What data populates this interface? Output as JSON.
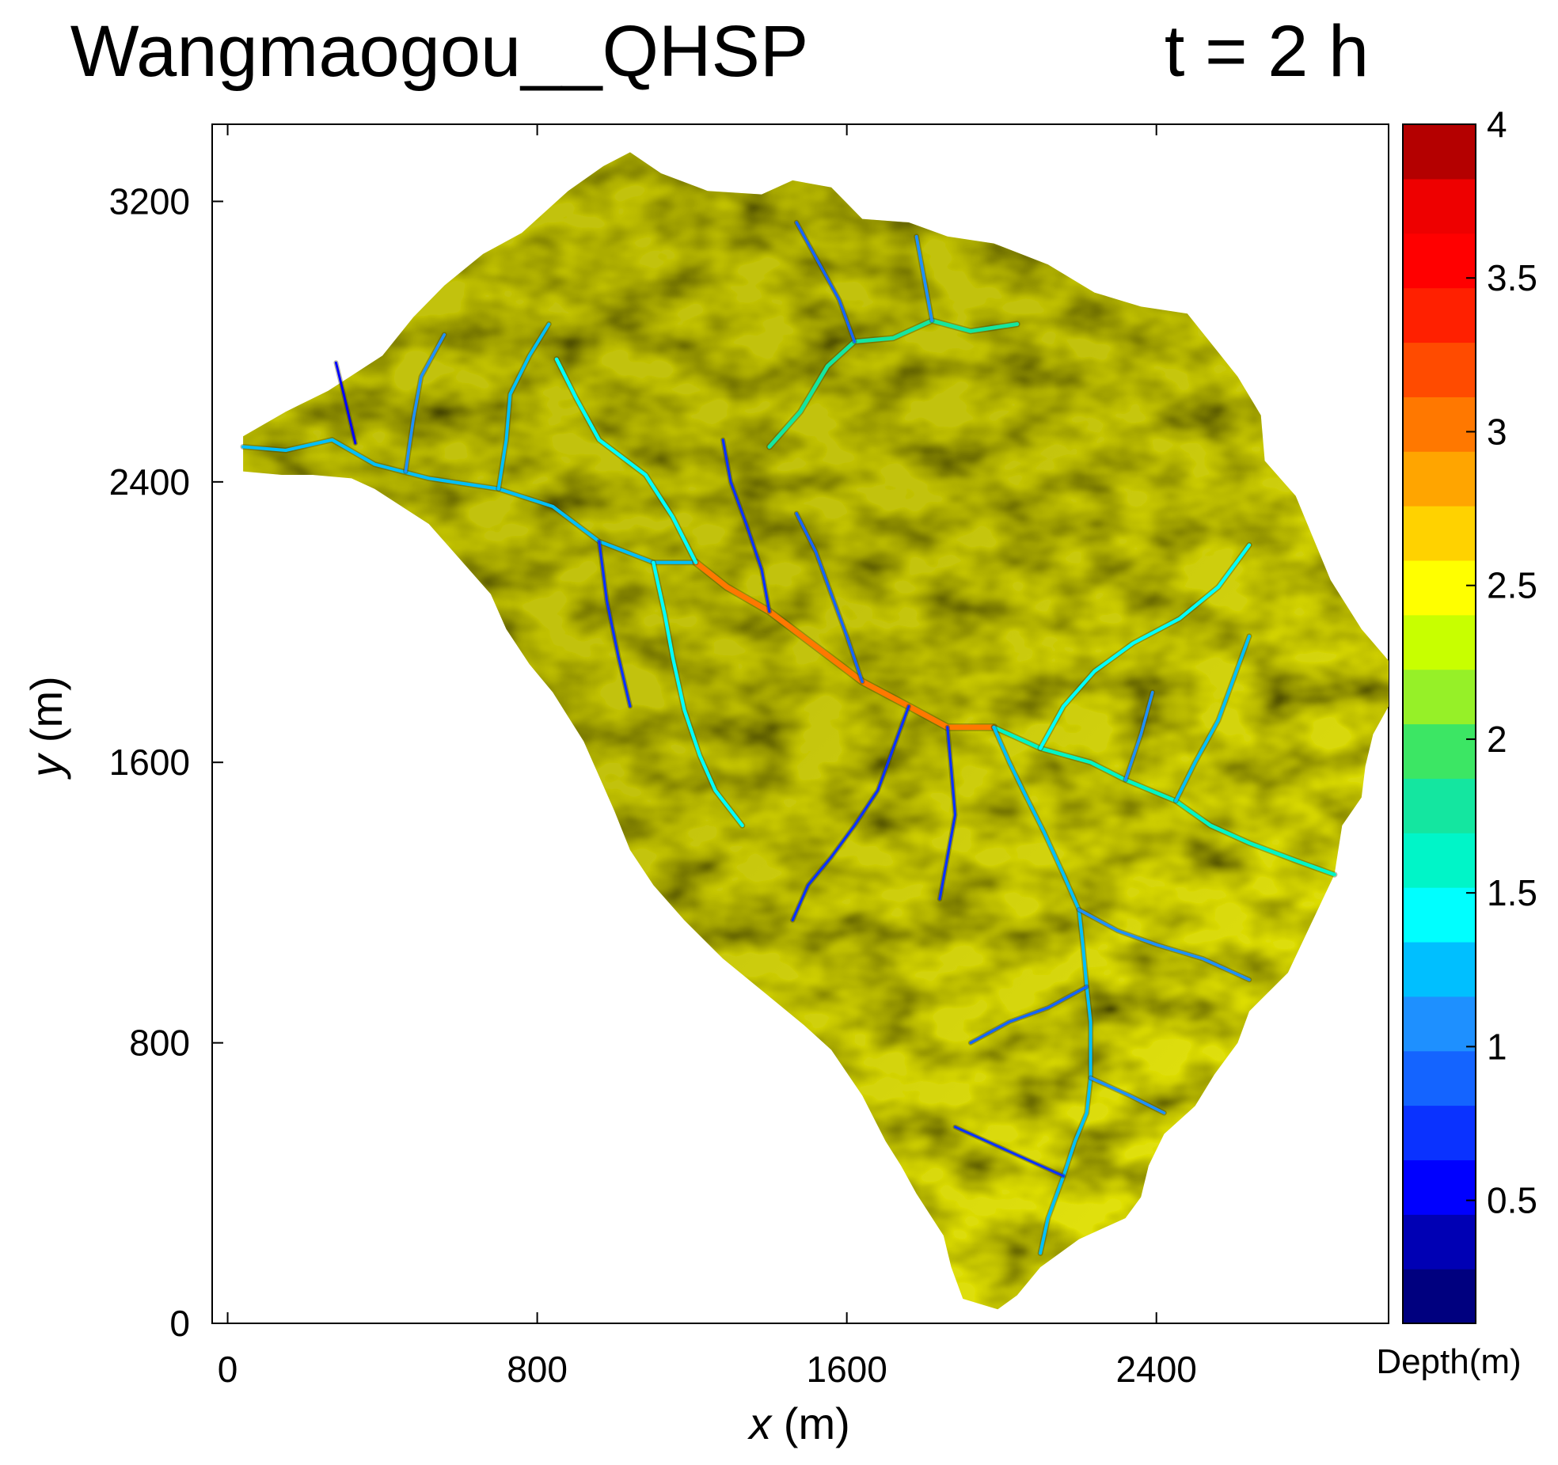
{
  "chart_data": {
    "type": "heatmap",
    "title_main": "Wangmaogou__QHSP",
    "title_time": "t = 2 h",
    "x_axis": {
      "label_var": "x",
      "label_unit": " (m)",
      "range": [
        -40,
        3000
      ],
      "ticks": [
        0,
        800,
        1600,
        2400
      ],
      "tick_labels": [
        "0",
        "800",
        "1600",
        "2400"
      ]
    },
    "y_axis": {
      "label_var": "y",
      "label_unit": " (m)",
      "range": [
        0,
        3420
      ],
      "ticks": [
        0,
        800,
        1600,
        2400,
        3200
      ],
      "tick_labels": [
        "0",
        "800",
        "1600",
        "2400",
        "3200"
      ]
    },
    "colorbar": {
      "label": "Depth(m)",
      "range": [
        0.1,
        4.0
      ],
      "ticks": [
        0.5,
        1,
        1.5,
        2,
        2.5,
        3,
        3.5,
        4
      ],
      "tick_labels": [
        "0.5",
        "1",
        "1.5",
        "2",
        "2.5",
        "3",
        "3.5",
        "4"
      ],
      "levels": [
        "#00007f",
        "#0000b4",
        "#0000ff",
        "#0a32ff",
        "#1464ff",
        "#1e90ff",
        "#00bfff",
        "#00ffff",
        "#00f5c8",
        "#14e6a0",
        "#3ce664",
        "#96f028",
        "#c8ff00",
        "#ffff00",
        "#ffd200",
        "#ffa500",
        "#ff7800",
        "#ff4b00",
        "#ff2000",
        "#ff0000",
        "#ee0000",
        "#b40000"
      ]
    },
    "terrain_colors": {
      "light": "#eded10",
      "mid": "#c2c20e",
      "dark": "#4a4a0a"
    },
    "catchment_outline": [
      [
        40,
        2530
      ],
      [
        150,
        2600
      ],
      [
        260,
        2660
      ],
      [
        400,
        2760
      ],
      [
        480,
        2870
      ],
      [
        560,
        2960
      ],
      [
        660,
        3050
      ],
      [
        760,
        3110
      ],
      [
        880,
        3230
      ],
      [
        970,
        3300
      ],
      [
        1040,
        3340
      ],
      [
        1120,
        3280
      ],
      [
        1240,
        3230
      ],
      [
        1380,
        3220
      ],
      [
        1460,
        3260
      ],
      [
        1560,
        3240
      ],
      [
        1640,
        3150
      ],
      [
        1760,
        3140
      ],
      [
        1860,
        3100
      ],
      [
        1980,
        3080
      ],
      [
        2120,
        3020
      ],
      [
        2240,
        2940
      ],
      [
        2360,
        2900
      ],
      [
        2480,
        2880
      ],
      [
        2610,
        2700
      ],
      [
        2670,
        2590
      ],
      [
        2680,
        2460
      ],
      [
        2760,
        2360
      ],
      [
        2850,
        2120
      ],
      [
        2930,
        1980
      ],
      [
        3000,
        1890
      ],
      [
        3000,
        1760
      ],
      [
        2960,
        1680
      ],
      [
        2940,
        1590
      ],
      [
        2930,
        1500
      ],
      [
        2880,
        1420
      ],
      [
        2860,
        1280
      ],
      [
        2800,
        1140
      ],
      [
        2740,
        1000
      ],
      [
        2640,
        890
      ],
      [
        2610,
        800
      ],
      [
        2550,
        710
      ],
      [
        2500,
        620
      ],
      [
        2420,
        540
      ],
      [
        2380,
        450
      ],
      [
        2360,
        360
      ],
      [
        2320,
        300
      ],
      [
        2200,
        240
      ],
      [
        2100,
        160
      ],
      [
        2040,
        80
      ],
      [
        1990,
        40
      ],
      [
        1900,
        70
      ],
      [
        1870,
        160
      ],
      [
        1850,
        250
      ],
      [
        1780,
        370
      ],
      [
        1740,
        450
      ],
      [
        1700,
        520
      ],
      [
        1640,
        650
      ],
      [
        1560,
        780
      ],
      [
        1490,
        850
      ],
      [
        1380,
        950
      ],
      [
        1280,
        1040
      ],
      [
        1180,
        1150
      ],
      [
        1100,
        1250
      ],
      [
        1040,
        1350
      ],
      [
        1000,
        1460
      ],
      [
        960,
        1560
      ],
      [
        920,
        1660
      ],
      [
        880,
        1730
      ],
      [
        840,
        1800
      ],
      [
        780,
        1880
      ],
      [
        720,
        1980
      ],
      [
        680,
        2080
      ],
      [
        600,
        2180
      ],
      [
        520,
        2280
      ],
      [
        450,
        2330
      ],
      [
        380,
        2380
      ],
      [
        320,
        2410
      ],
      [
        220,
        2420
      ],
      [
        140,
        2420
      ],
      [
        40,
        2430
      ]
    ],
    "channels": [
      {
        "depth": 1.3,
        "path": [
          [
            40,
            2500
          ],
          [
            150,
            2490
          ],
          [
            270,
            2520
          ],
          [
            380,
            2450
          ],
          [
            520,
            2410
          ],
          [
            700,
            2380
          ],
          [
            840,
            2330
          ],
          [
            960,
            2230
          ],
          [
            1100,
            2170
          ],
          [
            1210,
            2170
          ]
        ]
      },
      {
        "depth": 3.0,
        "path": [
          [
            1210,
            2170
          ],
          [
            1290,
            2100
          ],
          [
            1400,
            2030
          ],
          [
            1520,
            1930
          ],
          [
            1640,
            1830
          ],
          [
            1760,
            1760
          ],
          [
            1860,
            1700
          ],
          [
            1980,
            1700
          ]
        ]
      },
      {
        "depth": 1.6,
        "path": [
          [
            1980,
            1700
          ],
          [
            2100,
            1640
          ],
          [
            2230,
            1600
          ],
          [
            2320,
            1550
          ],
          [
            2450,
            1490
          ],
          [
            2540,
            1420
          ],
          [
            2640,
            1370
          ],
          [
            2760,
            1320
          ],
          [
            2860,
            1280
          ]
        ]
      },
      {
        "depth": 1.2,
        "path": [
          [
            1980,
            1700
          ],
          [
            2020,
            1600
          ],
          [
            2060,
            1510
          ],
          [
            2110,
            1400
          ],
          [
            2160,
            1280
          ],
          [
            2200,
            1180
          ],
          [
            2210,
            1080
          ],
          [
            2220,
            960
          ],
          [
            2230,
            860
          ],
          [
            2230,
            700
          ],
          [
            2220,
            600
          ],
          [
            2190,
            520
          ],
          [
            2160,
            420
          ],
          [
            2120,
            300
          ],
          [
            2100,
            200
          ]
        ]
      },
      {
        "depth": 1.5,
        "path": [
          [
            1210,
            2170
          ],
          [
            1150,
            2300
          ],
          [
            1080,
            2420
          ],
          [
            960,
            2520
          ],
          [
            900,
            2640
          ],
          [
            850,
            2750
          ]
        ]
      },
      {
        "depth": 1.8,
        "path": [
          [
            1400,
            2500
          ],
          [
            1480,
            2600
          ],
          [
            1550,
            2730
          ],
          [
            1620,
            2800
          ],
          [
            1720,
            2810
          ],
          [
            1820,
            2860
          ],
          [
            1920,
            2830
          ],
          [
            2040,
            2850
          ]
        ]
      },
      {
        "depth": 1.4,
        "path": [
          [
            1100,
            2170
          ],
          [
            1130,
            2020
          ],
          [
            1150,
            1900
          ],
          [
            1180,
            1750
          ],
          [
            1220,
            1620
          ],
          [
            1260,
            1520
          ],
          [
            1330,
            1420
          ]
        ]
      },
      {
        "depth": 1.2,
        "path": [
          [
            700,
            2380
          ],
          [
            720,
            2520
          ],
          [
            730,
            2650
          ],
          [
            780,
            2760
          ],
          [
            830,
            2850
          ]
        ]
      },
      {
        "depth": 1.0,
        "path": [
          [
            460,
            2430
          ],
          [
            480,
            2580
          ],
          [
            500,
            2700
          ],
          [
            560,
            2820
          ]
        ]
      },
      {
        "depth": 0.8,
        "path": [
          [
            1760,
            1760
          ],
          [
            1720,
            1640
          ],
          [
            1680,
            1520
          ],
          [
            1620,
            1420
          ],
          [
            1560,
            1330
          ],
          [
            1500,
            1250
          ],
          [
            1460,
            1150
          ]
        ]
      },
      {
        "depth": 0.8,
        "path": [
          [
            1860,
            1700
          ],
          [
            1870,
            1580
          ],
          [
            1880,
            1450
          ],
          [
            1860,
            1330
          ],
          [
            1840,
            1210
          ]
        ]
      },
      {
        "depth": 1.0,
        "path": [
          [
            2200,
            1180
          ],
          [
            2300,
            1120
          ],
          [
            2400,
            1080
          ],
          [
            2520,
            1040
          ],
          [
            2640,
            980
          ]
        ]
      },
      {
        "depth": 0.9,
        "path": [
          [
            2220,
            960
          ],
          [
            2120,
            900
          ],
          [
            2020,
            860
          ],
          [
            1920,
            800
          ]
        ]
      },
      {
        "depth": 1.0,
        "path": [
          [
            2230,
            700
          ],
          [
            2330,
            650
          ],
          [
            2420,
            600
          ]
        ]
      },
      {
        "depth": 0.7,
        "path": [
          [
            2160,
            420
          ],
          [
            2060,
            470
          ],
          [
            1960,
            520
          ],
          [
            1880,
            560
          ]
        ]
      },
      {
        "depth": 1.2,
        "path": [
          [
            2450,
            1490
          ],
          [
            2500,
            1600
          ],
          [
            2560,
            1720
          ],
          [
            2600,
            1840
          ],
          [
            2640,
            1960
          ]
        ]
      },
      {
        "depth": 1.4,
        "path": [
          [
            2100,
            1640
          ],
          [
            2160,
            1760
          ],
          [
            2240,
            1860
          ],
          [
            2340,
            1940
          ],
          [
            2460,
            2010
          ],
          [
            2560,
            2100
          ],
          [
            2640,
            2220
          ]
        ]
      },
      {
        "depth": 0.8,
        "path": [
          [
            1400,
            2030
          ],
          [
            1380,
            2150
          ],
          [
            1340,
            2280
          ],
          [
            1300,
            2400
          ],
          [
            1280,
            2520
          ]
        ]
      },
      {
        "depth": 0.9,
        "path": [
          [
            1640,
            1830
          ],
          [
            1600,
            1960
          ],
          [
            1560,
            2080
          ],
          [
            1520,
            2200
          ],
          [
            1470,
            2310
          ]
        ]
      },
      {
        "depth": 1.1,
        "path": [
          [
            1820,
            2860
          ],
          [
            1800,
            2980
          ],
          [
            1780,
            3100
          ]
        ]
      },
      {
        "depth": 0.9,
        "path": [
          [
            1620,
            2800
          ],
          [
            1580,
            2920
          ],
          [
            1520,
            3040
          ],
          [
            1470,
            3140
          ]
        ]
      },
      {
        "depth": 0.8,
        "path": [
          [
            960,
            2230
          ],
          [
            980,
            2060
          ],
          [
            1010,
            1900
          ],
          [
            1040,
            1760
          ]
        ]
      },
      {
        "depth": 0.6,
        "path": [
          [
            330,
            2510
          ],
          [
            300,
            2650
          ],
          [
            280,
            2740
          ]
        ]
      },
      {
        "depth": 1.0,
        "path": [
          [
            2320,
            1550
          ],
          [
            2360,
            1680
          ],
          [
            2390,
            1800
          ]
        ]
      }
    ]
  }
}
